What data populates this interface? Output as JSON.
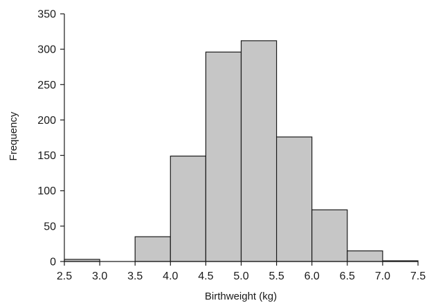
{
  "chart_data": {
    "type": "bar",
    "title": "",
    "xlabel": "Birthweight (kg)",
    "ylabel": "Frequency",
    "xlim": [
      2.5,
      7.5
    ],
    "ylim": [
      0,
      350
    ],
    "x_ticks": [
      "2.5",
      "3.0",
      "3.5",
      "4.0",
      "4.5",
      "5.0",
      "5.5",
      "6.0",
      "6.5",
      "7.0",
      "7.5"
    ],
    "y_ticks": [
      "0",
      "50",
      "100",
      "150",
      "200",
      "250",
      "300",
      "350"
    ],
    "bins": [
      {
        "start": 2.5,
        "end": 3.0,
        "value": 3
      },
      {
        "start": 3.0,
        "end": 3.5,
        "value": 0
      },
      {
        "start": 3.5,
        "end": 4.0,
        "value": 35
      },
      {
        "start": 4.0,
        "end": 4.5,
        "value": 149
      },
      {
        "start": 4.5,
        "end": 5.0,
        "value": 296
      },
      {
        "start": 5.0,
        "end": 5.5,
        "value": 312
      },
      {
        "start": 5.5,
        "end": 6.0,
        "value": 176
      },
      {
        "start": 6.0,
        "end": 6.5,
        "value": 73
      },
      {
        "start": 6.5,
        "end": 7.0,
        "value": 15
      },
      {
        "start": 7.0,
        "end": 7.5,
        "value": 1
      }
    ],
    "grid": false,
    "colors": {
      "bar_fill": "#c6c6c6",
      "bar_edge": "#1a1a1a"
    }
  }
}
